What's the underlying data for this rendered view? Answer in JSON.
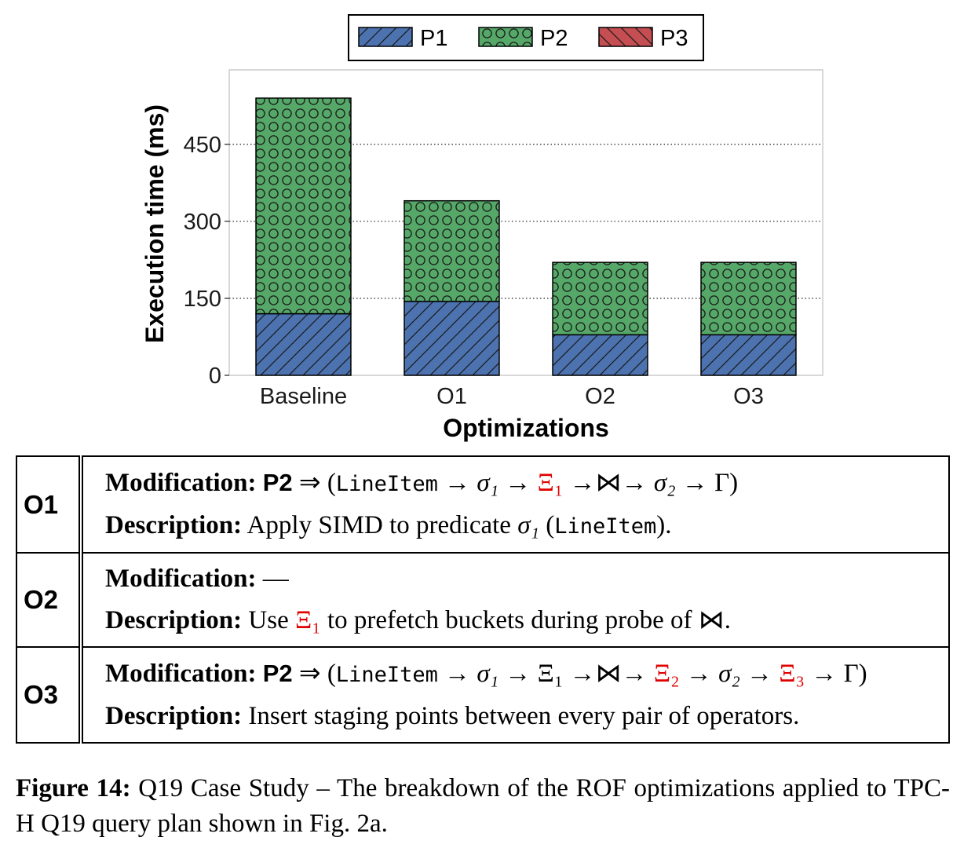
{
  "chart_data": {
    "type": "bar",
    "stacked": true,
    "categories": [
      "Baseline",
      "O1",
      "O2",
      "O3"
    ],
    "series": [
      {
        "name": "P1",
        "values": [
          120,
          144,
          79,
          79
        ],
        "color": "#4c72b0",
        "pattern": "diagonal-hatch"
      },
      {
        "name": "P2",
        "values": [
          420,
          196,
          141,
          141
        ],
        "color": "#55a868",
        "pattern": "circles"
      },
      {
        "name": "P3",
        "values": [
          0,
          0,
          0,
          0
        ],
        "color": "#c44e52",
        "pattern": "back-diagonal-hatch"
      }
    ],
    "xlabel": "Optimizations",
    "ylabel": "Execution time (ms)",
    "yticks": [
      0,
      150,
      300,
      450
    ],
    "ylim": [
      0,
      595
    ],
    "grid": "horizontal-dotted",
    "legend_position": "top-center"
  },
  "table": {
    "rows": [
      {
        "id": "O1",
        "modification_label": "Modification:",
        "modification_prefix": "P2",
        "implies": "⇒",
        "open": "(",
        "lineitem": "LineItem",
        "arrow": "→",
        "sigma1": "σ₁",
        "xi1": "Ξ₁",
        "join_arrow": "→⋈→",
        "sigma2": "σ₂",
        "gamma": "Γ",
        "close": ")",
        "description_label": "Description:",
        "description_pre": "Apply SIMD to predicate",
        "description_sigma": "σ₁",
        "description_lineitem": "LineItem",
        "description_post": "."
      },
      {
        "id": "O2",
        "modification_label": "Modification:",
        "modification_value": "—",
        "description_label": "Description:",
        "description_pre": "Use",
        "description_xi": "Ξ₁",
        "description_post": "to prefetch buckets during probe of ⋈."
      },
      {
        "id": "O3",
        "modification_label": "Modification:",
        "modification_prefix": "P2",
        "implies": "⇒",
        "open": "(",
        "lineitem": "LineItem",
        "arrow": "→",
        "sigma1": "σ₁",
        "xi1": "Ξ₁",
        "join_arrow": "→⋈→",
        "xi2": "Ξ₂",
        "sigma2": "σ₂",
        "xi3": "Ξ₃",
        "gamma": "Γ",
        "close": ")",
        "description_label": "Description:",
        "description_text": "Insert staging points between every pair of operators."
      }
    ]
  },
  "caption": {
    "label": "Figure 14:",
    "text": "Q19 Case Study – The breakdown of the ROF optimizations applied to TPC-H Q19 query plan shown in Fig. 2a."
  }
}
